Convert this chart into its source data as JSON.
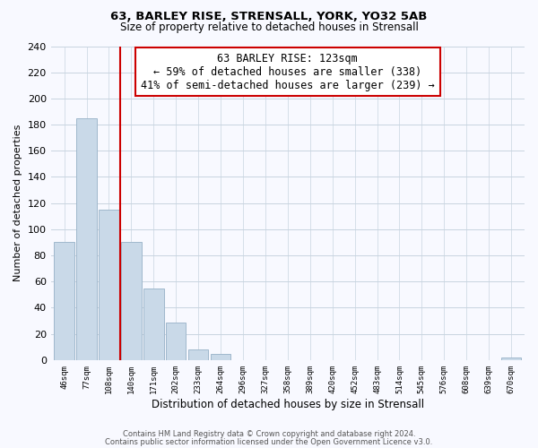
{
  "title": "63, BARLEY RISE, STRENSALL, YORK, YO32 5AB",
  "subtitle": "Size of property relative to detached houses in Strensall",
  "xlabel": "Distribution of detached houses by size in Strensall",
  "ylabel": "Number of detached properties",
  "bar_labels": [
    "46sqm",
    "77sqm",
    "108sqm",
    "140sqm",
    "171sqm",
    "202sqm",
    "233sqm",
    "264sqm",
    "296sqm",
    "327sqm",
    "358sqm",
    "389sqm",
    "420sqm",
    "452sqm",
    "483sqm",
    "514sqm",
    "545sqm",
    "576sqm",
    "608sqm",
    "639sqm",
    "670sqm"
  ],
  "bar_values": [
    90,
    185,
    115,
    90,
    55,
    29,
    8,
    5,
    0,
    0,
    0,
    0,
    0,
    0,
    0,
    0,
    0,
    0,
    0,
    0,
    2
  ],
  "bar_color": "#c9d9e8",
  "bar_edge_color": "#a0b8cc",
  "vline_x": 2.5,
  "vline_color": "#cc0000",
  "annotation_line1": "63 BARLEY RISE: 123sqm",
  "annotation_line2": "← 59% of detached houses are smaller (338)",
  "annotation_line3": "41% of semi-detached houses are larger (239) →",
  "annotation_box_color": "#ffffff",
  "annotation_box_edge": "#cc0000",
  "ylim": [
    0,
    240
  ],
  "yticks": [
    0,
    20,
    40,
    60,
    80,
    100,
    120,
    140,
    160,
    180,
    200,
    220,
    240
  ],
  "footer_line1": "Contains HM Land Registry data © Crown copyright and database right 2024.",
  "footer_line2": "Contains public sector information licensed under the Open Government Licence v3.0.",
  "bg_color": "#f8f9ff",
  "grid_color": "#c8d4e0"
}
